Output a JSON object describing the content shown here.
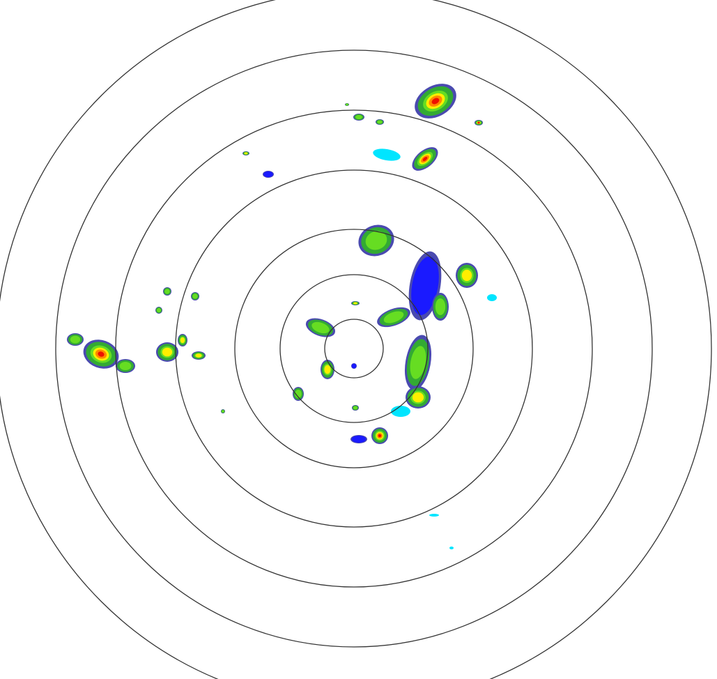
{
  "map": {
    "type": "weather-radar-reflectivity",
    "range_ring_count": 7,
    "colors": {
      "ring": "#333333",
      "background": "#ffffff",
      "very_light": "#00e5ff",
      "light": "#1a1aff",
      "light_dim": "#4a4ab0",
      "moderate": "#33aa33",
      "moderate_bright": "#66dd22",
      "heavy": "#ffee00",
      "very_heavy": "#ff8800",
      "intense": "#ee1100"
    }
  }
}
